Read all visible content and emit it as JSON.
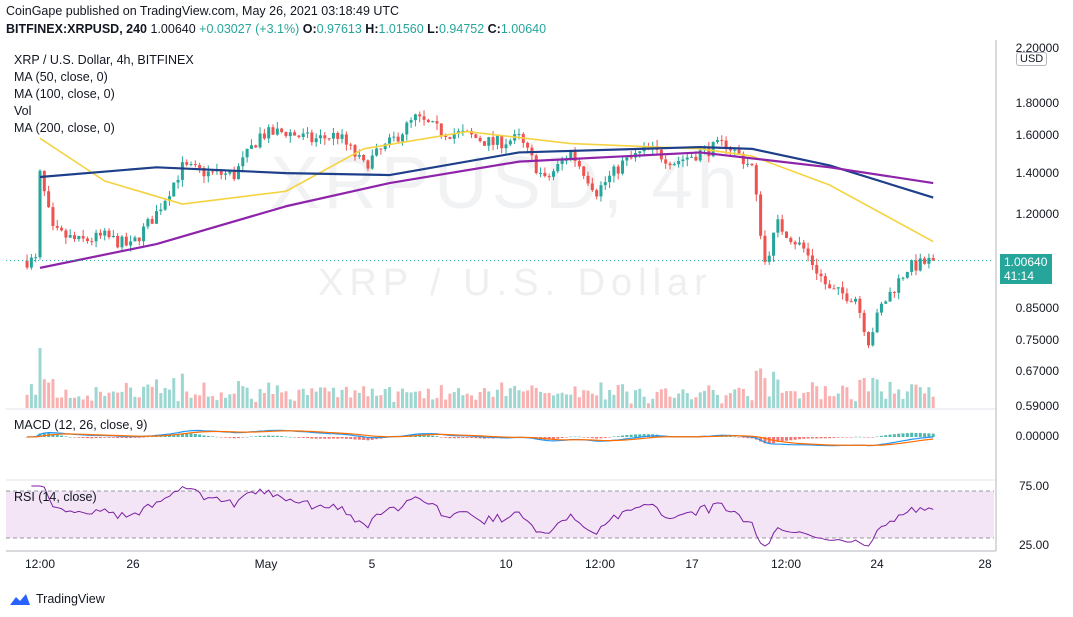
{
  "header": {
    "line1": "CoinGape published on TradingView.com, May 26, 2021 03:18:49 UTC",
    "symbol": "BITFINEX:XRPUSD, 240",
    "last": "1.00640",
    "change": "+0.03027 (+3.1%)",
    "o_label": "O:",
    "o": "0.97613",
    "h_label": "H:",
    "h": "1.01560",
    "l_label": "L:",
    "l": "0.94752",
    "c_label": "C:",
    "c": "1.00640"
  },
  "legend": {
    "title": "XRP / U.S. Dollar, 4h, BITFINEX",
    "ma50": "MA (50, close, 0)",
    "ma100": "MA (100, close, 0)",
    "vol": "Vol",
    "ma200": "MA (200, close, 0)"
  },
  "watermark": {
    "symbol": "XRPUSD, 4h",
    "name": "XRP / U.S. Dollar"
  },
  "price_axis": {
    "ticks": [
      "2.20000",
      "1.80000",
      "1.60000",
      "1.40000",
      "1.20000",
      "0.85000",
      "0.75000",
      "0.67000",
      "0.59000"
    ],
    "current_price": "1.00640",
    "countdown": "41:14",
    "currency_button": "USD"
  },
  "macd": {
    "label": "MACD (12, 26, close, 9)",
    "tick": "0.00000"
  },
  "rsi": {
    "label": "RSI (14, close)",
    "ticks": [
      "75.00",
      "25.00"
    ]
  },
  "x_axis": {
    "ticks": [
      "12:00",
      "26",
      "May",
      "5",
      "10",
      "12:00",
      "17",
      "12:00",
      "24",
      "28"
    ]
  },
  "footer": {
    "brand": "TradingView"
  },
  "colors": {
    "up": "#26a69a",
    "down": "#ef5350",
    "ma50": "#f5d340",
    "ma100": "#1e3f8a",
    "ma200": "#8e24aa",
    "macd": "#2196f3",
    "signal": "#ff6d00",
    "rsi": "#7b1fa2",
    "rsi_band": "#f3e5f5"
  },
  "chart_data": {
    "type": "candlestick",
    "title": "XRP / U.S. Dollar, 4h, BITFINEX",
    "x": [
      "Apr 21 12:00",
      "Apr 26",
      "May 1",
      "May 5",
      "May 10",
      "May 12 12:00",
      "May 17",
      "May 19 12:00",
      "May 24",
      "May 28"
    ],
    "close_path": [
      [
        "Apr 21 12:00",
        1.38
      ],
      [
        "Apr 22",
        1.12
      ],
      [
        "Apr 23",
        1.08
      ],
      [
        "Apr 24",
        1.1
      ],
      [
        "Apr 25",
        1.06
      ],
      [
        "Apr 26",
        1.2
      ],
      [
        "Apr 27",
        1.42
      ],
      [
        "Apr 28",
        1.39
      ],
      [
        "Apr 29",
        1.38
      ],
      [
        "Apr 30",
        1.6
      ],
      [
        "May 1",
        1.62
      ],
      [
        "May 2",
        1.57
      ],
      [
        "May 3",
        1.6
      ],
      [
        "May 4",
        1.43
      ],
      [
        "May 5",
        1.55
      ],
      [
        "May 6",
        1.7
      ],
      [
        "May 7",
        1.62
      ],
      [
        "May 8",
        1.6
      ],
      [
        "May 9",
        1.55
      ],
      [
        "May 10",
        1.58
      ],
      [
        "May 11",
        1.35
      ],
      [
        "May 12",
        1.5
      ],
      [
        "May 12 12:00",
        1.4
      ],
      [
        "May 13",
        1.3
      ],
      [
        "May 14",
        1.44
      ],
      [
        "May 15",
        1.52
      ],
      [
        "May 16",
        1.45
      ],
      [
        "May 17",
        1.5
      ],
      [
        "May 18",
        1.55
      ],
      [
        "May 19",
        1.42
      ],
      [
        "May 19 12:00",
        1.0
      ],
      [
        "May 20",
        1.15
      ],
      [
        "May 21",
        1.05
      ],
      [
        "May 22",
        0.9
      ],
      [
        "May 23",
        0.88
      ],
      [
        "May 23 12:00",
        0.75
      ],
      [
        "May 24",
        0.85
      ],
      [
        "May 25",
        0.98
      ],
      [
        "May 26",
        1.0064
      ]
    ],
    "series": [
      {
        "name": "MA (50, close, 0)",
        "values": [
          [
            "Apr 21 12:00",
            1.58
          ],
          [
            "Apr 24",
            1.35
          ],
          [
            "Apr 27",
            1.24
          ],
          [
            "May 1",
            1.3
          ],
          [
            "May 4",
            1.52
          ],
          [
            "May 8",
            1.62
          ],
          [
            "May 12",
            1.55
          ],
          [
            "May 17",
            1.52
          ],
          [
            "May 19",
            1.48
          ],
          [
            "May 22",
            1.33
          ],
          [
            "May 26",
            1.08
          ]
        ]
      },
      {
        "name": "MA (100, close, 0)",
        "values": [
          [
            "Apr 21 12:00",
            1.37
          ],
          [
            "Apr 26",
            1.42
          ],
          [
            "May 1",
            1.39
          ],
          [
            "May 5",
            1.38
          ],
          [
            "May 10",
            1.5
          ],
          [
            "May 17",
            1.53
          ],
          [
            "May 19",
            1.52
          ],
          [
            "May 22",
            1.43
          ],
          [
            "May 26",
            1.27
          ]
        ]
      },
      {
        "name": "MA (200, close, 0)",
        "values": [
          [
            "Apr 21 12:00",
            0.98
          ],
          [
            "Apr 26",
            1.07
          ],
          [
            "May 1",
            1.23
          ],
          [
            "May 5",
            1.34
          ],
          [
            "May 10",
            1.45
          ],
          [
            "May 17",
            1.5
          ],
          [
            "May 22",
            1.42
          ],
          [
            "May 26",
            1.34
          ]
        ]
      }
    ],
    "rsi_range": [
      25,
      75
    ],
    "ylabel": "USD"
  }
}
